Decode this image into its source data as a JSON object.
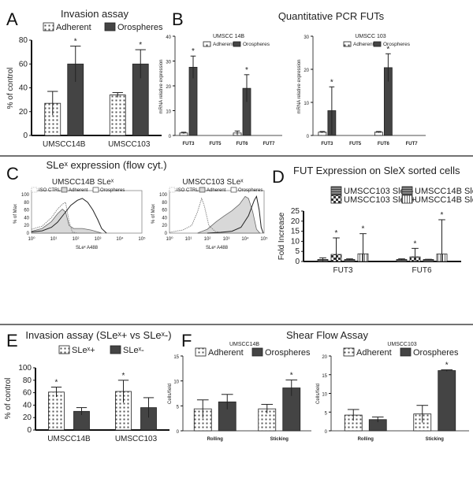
{
  "panels": {
    "A": "A",
    "B": "B",
    "C": "C",
    "D": "D",
    "E": "E",
    "F": "F"
  },
  "section_titles": {
    "B": "Quantitative PCR FUTs",
    "C": "SLeˣ expression (flow cyt.)",
    "F": "Shear Flow Assay"
  },
  "colors": {
    "adherent_fill": "#ffffff",
    "pattern_dots": "#555555",
    "orospheres_fill": "#444444",
    "iso_line": "#888888",
    "adherent_hist": "#d8d8d8",
    "axis": "#111111"
  },
  "chart_data": [
    {
      "id": "A",
      "type": "bar",
      "title": "Invasion assay",
      "ylabel": "% of control",
      "ylim": [
        0,
        80
      ],
      "yticks": [
        0,
        20,
        40,
        60,
        80
      ],
      "categories": [
        "UMSCC14B",
        "UMSCC103"
      ],
      "series": [
        {
          "name": "Adherent",
          "values": [
            27,
            34
          ],
          "errors": [
            10,
            2
          ],
          "significant": [
            false,
            false
          ],
          "pattern": "dots"
        },
        {
          "name": "Orospheres",
          "values": [
            60,
            60
          ],
          "errors": [
            15,
            12
          ],
          "significant": [
            true,
            true
          ],
          "pattern": "solid"
        }
      ],
      "star": "*"
    },
    {
      "id": "B1",
      "type": "bar",
      "title": "UMSCC 14B",
      "ylabel": "mRNA relative expression",
      "ylim": [
        0,
        40
      ],
      "yticks": [
        0,
        10,
        20,
        30,
        40
      ],
      "categories": [
        "FUT3",
        "FUT5",
        "FUT6",
        "FUT7"
      ],
      "series": [
        {
          "name": "Adherent",
          "values": [
            1,
            0,
            1,
            0
          ],
          "errors": [
            0.3,
            0,
            0.8,
            0
          ],
          "significant": [
            false,
            false,
            false,
            false
          ],
          "pattern": "dots"
        },
        {
          "name": "Orospheres",
          "values": [
            27.5,
            0,
            19,
            0
          ],
          "errors": [
            4.5,
            0,
            5.5,
            0
          ],
          "significant": [
            true,
            false,
            true,
            false
          ],
          "pattern": "solid"
        }
      ],
      "star": "*"
    },
    {
      "id": "B2",
      "type": "bar",
      "title": "UMSCC 103",
      "ylabel": "mRNA relative expression",
      "ylim": [
        0,
        30
      ],
      "yticks": [
        0,
        10,
        20,
        30
      ],
      "categories": [
        "FUT3",
        "FUT5",
        "FUT6",
        "FUT7"
      ],
      "series": [
        {
          "name": "Adherent",
          "values": [
            1,
            0,
            1,
            0
          ],
          "errors": [
            0.2,
            0,
            0.2,
            0
          ],
          "significant": [
            false,
            false,
            false,
            false
          ],
          "pattern": "dots"
        },
        {
          "name": "Orospheres",
          "values": [
            7.5,
            0,
            20.5,
            0
          ],
          "errors": [
            7.2,
            0,
            4.2,
            0
          ],
          "significant": [
            true,
            false,
            true,
            false
          ],
          "pattern": "solid"
        }
      ],
      "star": "*"
    },
    {
      "id": "C1",
      "type": "line",
      "title": "UMSCC14B SLeˣ",
      "xlabel": "SLeˣ A488",
      "ylabel": "% of Max",
      "xscale": "log",
      "xlim": [
        1,
        100000
      ],
      "ylim": [
        0,
        100
      ],
      "xticks": [
        "10⁰",
        "10¹",
        "10²",
        "10³",
        "10⁴",
        "10⁵"
      ],
      "yticks": [
        0,
        20,
        40,
        60,
        80,
        100
      ],
      "series": [
        {
          "name": "ISO CTRL",
          "style": "dotted",
          "points": [
            [
              1,
              10
            ],
            [
              3,
              18
            ],
            [
              8,
              40
            ],
            [
              15,
              62
            ],
            [
              25,
              75
            ],
            [
              35,
              80
            ],
            [
              50,
              30
            ],
            [
              70,
              3
            ],
            [
              120,
              0
            ]
          ]
        },
        {
          "name": "Adherent",
          "style": "filled",
          "points": [
            [
              1,
              5
            ],
            [
              3,
              12
            ],
            [
              8,
              30
            ],
            [
              15,
              50
            ],
            [
              25,
              62
            ],
            [
              35,
              55
            ],
            [
              50,
              20
            ],
            [
              80,
              12
            ],
            [
              200,
              12
            ],
            [
              500,
              8
            ],
            [
              1000,
              3
            ],
            [
              1500,
              0
            ]
          ]
        },
        {
          "name": "Orospheres",
          "style": "line",
          "points": [
            [
              1,
              3
            ],
            [
              3,
              6
            ],
            [
              8,
              15
            ],
            [
              15,
              28
            ],
            [
              30,
              50
            ],
            [
              60,
              72
            ],
            [
              120,
              85
            ],
            [
              200,
              90
            ],
            [
              350,
              80
            ],
            [
              600,
              60
            ],
            [
              1000,
              35
            ],
            [
              1500,
              12
            ],
            [
              2500,
              0
            ]
          ]
        }
      ]
    },
    {
      "id": "C2",
      "type": "line",
      "title": "UMSCC103 SLeˣ",
      "xlabel": "SLeˣ A488",
      "ylabel": "% of Max",
      "xscale": "log",
      "xlim": [
        1,
        100000
      ],
      "ylim": [
        0,
        100
      ],
      "xticks": [
        "10⁰",
        "10¹",
        "10²",
        "10³",
        "10⁴",
        "10⁵"
      ],
      "yticks": [
        0,
        20,
        40,
        60,
        80,
        100
      ],
      "series": [
        {
          "name": "ISO CTRL",
          "style": "dotted",
          "points": [
            [
              1,
              2
            ],
            [
              5,
              8
            ],
            [
              15,
              20
            ],
            [
              30,
              55
            ],
            [
              50,
              90
            ],
            [
              70,
              70
            ],
            [
              120,
              20
            ],
            [
              250,
              5
            ],
            [
              600,
              0
            ]
          ]
        },
        {
          "name": "Adherent",
          "style": "filled",
          "points": [
            [
              30,
              0
            ],
            [
              100,
              10
            ],
            [
              300,
              30
            ],
            [
              800,
              45
            ],
            [
              2000,
              58
            ],
            [
              5000,
              75
            ],
            [
              10000,
              95
            ],
            [
              15000,
              90
            ],
            [
              25000,
              55
            ],
            [
              40000,
              10
            ],
            [
              60000,
              0
            ]
          ]
        },
        {
          "name": "Orospheres",
          "style": "line",
          "points": [
            [
              100,
              0
            ],
            [
              500,
              2
            ],
            [
              2000,
              5
            ],
            [
              6000,
              15
            ],
            [
              15000,
              45
            ],
            [
              30000,
              85
            ],
            [
              40000,
              95
            ],
            [
              55000,
              60
            ],
            [
              70000,
              15
            ],
            [
              90000,
              0
            ]
          ]
        }
      ]
    },
    {
      "id": "D",
      "type": "bar",
      "title": "FUT Expression on SleX sorted cells",
      "ylabel": "Fold Increase",
      "ylim": [
        0,
        25
      ],
      "yticks": [
        0,
        5,
        10,
        15,
        20,
        25
      ],
      "categories": [
        "FUT3",
        "FUT6"
      ],
      "series": [
        {
          "name": "UMSCC103 SleX-",
          "values": [
            1,
            1
          ],
          "errors": [
            0.8,
            0.3
          ],
          "significant": [
            false,
            false
          ],
          "pattern": "hlines"
        },
        {
          "name": "UMSCC103 SleX+",
          "values": [
            3.5,
            2.3
          ],
          "errors": [
            8.2,
            4.2
          ],
          "significant": [
            true,
            true
          ],
          "pattern": "checker"
        },
        {
          "name": "UMSCC14B SleX-",
          "values": [
            1,
            1
          ],
          "errors": [
            0.3,
            0.1
          ],
          "significant": [
            false,
            false
          ],
          "pattern": "hlines"
        },
        {
          "name": "UMSCC14B SleX+",
          "values": [
            3.8,
            3.7
          ],
          "errors": [
            10,
            17
          ],
          "significant": [
            true,
            true
          ],
          "pattern": "vlines"
        }
      ],
      "star": "*"
    },
    {
      "id": "E",
      "type": "bar",
      "title": "Invasion assay (SLeˣ+ vs SLeˣ-)",
      "ylabel": "% of control",
      "ylim": [
        0,
        100
      ],
      "yticks": [
        0,
        20,
        40,
        60,
        80,
        100
      ],
      "categories": [
        "UMSCC14B",
        "UMSCC103"
      ],
      "series": [
        {
          "name": "SLeˣ+",
          "values": [
            61,
            62
          ],
          "errors": [
            8,
            18
          ],
          "significant": [
            true,
            true
          ],
          "pattern": "dots"
        },
        {
          "name": "SLeˣ-",
          "values": [
            30,
            36
          ],
          "errors": [
            6,
            16
          ],
          "significant": [
            false,
            false
          ],
          "pattern": "solid"
        }
      ],
      "star": "*"
    },
    {
      "id": "F1",
      "type": "bar",
      "title": "UMSCC14B",
      "ylabel": "Cells/field",
      "ylim": [
        0,
        15
      ],
      "yticks": [
        0,
        5,
        10,
        15
      ],
      "categories": [
        "Rolling",
        "Sticking"
      ],
      "series": [
        {
          "name": "Adherent",
          "values": [
            4.4,
            4.4
          ],
          "errors": [
            1.8,
            0.9
          ],
          "significant": [
            false,
            false
          ],
          "pattern": "dots"
        },
        {
          "name": "Orospheres",
          "values": [
            5.8,
            8.6
          ],
          "errors": [
            1.5,
            1.6
          ],
          "significant": [
            false,
            true
          ],
          "pattern": "solid"
        }
      ],
      "star": "*"
    },
    {
      "id": "F2",
      "type": "bar",
      "title": "UMSCC103",
      "ylabel": "Cells/field",
      "ylim": [
        0,
        20
      ],
      "yticks": [
        0,
        5,
        10,
        15,
        20
      ],
      "categories": [
        "Rolling",
        "Sticking"
      ],
      "series": [
        {
          "name": "Adherent",
          "values": [
            4.2,
            4.5
          ],
          "errors": [
            1.5,
            2.3
          ],
          "significant": [
            false,
            false
          ],
          "pattern": "dots"
        },
        {
          "name": "Orospheres",
          "values": [
            3,
            16.1
          ],
          "errors": [
            0.7,
            0.2
          ],
          "significant": [
            false,
            true
          ],
          "pattern": "solid"
        }
      ],
      "star": "*"
    }
  ]
}
